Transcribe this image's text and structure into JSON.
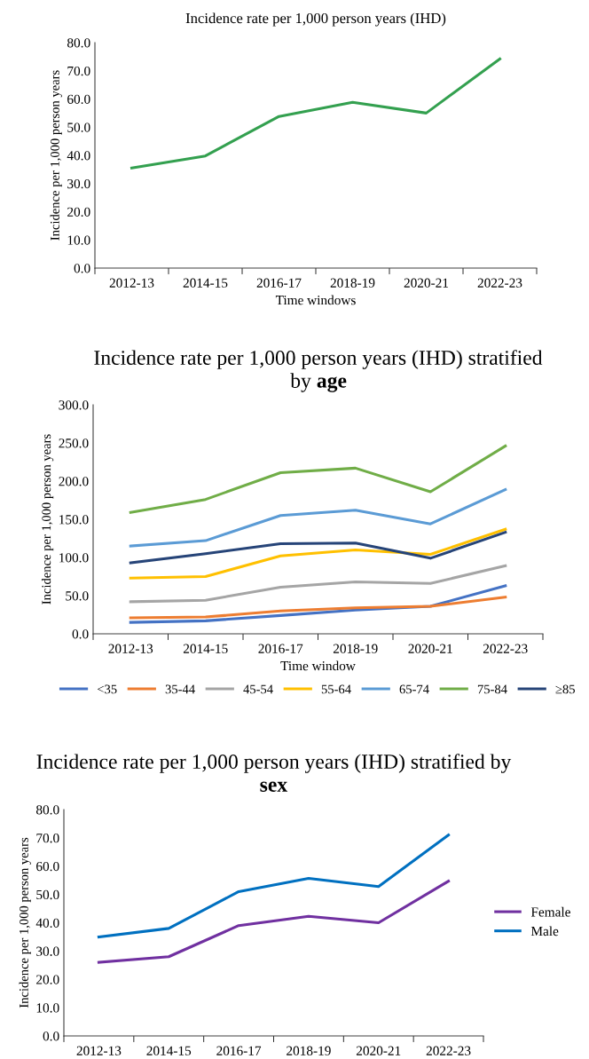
{
  "chart_data": [
    {
      "type": "line",
      "title": "Incidence rate per 1,000 person years (IHD)",
      "xlabel": "Time windows",
      "ylabel": "Incidence per 1,000 person years",
      "categories": [
        "2012-13",
        "2014-15",
        "2016-17",
        "2018-19",
        "2020-21",
        "2022-23"
      ],
      "series": [
        {
          "color": "#33a04f",
          "values": [
            35.5,
            39.8,
            53.8,
            58.8,
            55.0,
            74.2
          ]
        }
      ],
      "ylim": [
        0,
        80
      ],
      "yticks": [
        {
          "value": 0,
          "label": "0.0"
        },
        {
          "value": 10,
          "label": "10.0"
        },
        {
          "value": 20,
          "label": "20.0"
        },
        {
          "value": 30,
          "label": "30.0"
        },
        {
          "value": 40,
          "label": "40.0"
        },
        {
          "value": 50,
          "label": "50.0"
        },
        {
          "value": 60,
          "label": "60.0"
        },
        {
          "value": 70,
          "label": "70.0"
        },
        {
          "value": 80,
          "label": "80.0"
        }
      ],
      "legend": false,
      "grid": false
    },
    {
      "type": "line",
      "title": "Incidence rate per 1,000 person years (IHD) stratified by age",
      "xlabel": "Time window",
      "ylabel": "Incidence per 1,000 person years",
      "categories": [
        "2012-13",
        "2014-15",
        "2016-17",
        "2018-19",
        "2020-21",
        "2022-23"
      ],
      "series": [
        {
          "name": "<35",
          "color": "#4472c4",
          "values": [
            15,
            17,
            24,
            31,
            36,
            63
          ]
        },
        {
          "name": "35-44",
          "color": "#ed7d31",
          "values": [
            21,
            22,
            30,
            34,
            36,
            48
          ]
        },
        {
          "name": "45-54",
          "color": "#a5a5a5",
          "values": [
            42,
            44,
            61,
            68,
            66,
            89
          ]
        },
        {
          "name": "55-64",
          "color": "#ffc000",
          "values": [
            73,
            75,
            102,
            110,
            104,
            137
          ]
        },
        {
          "name": "65-74",
          "color": "#5b9bd5",
          "values": [
            115,
            122,
            155,
            162,
            144,
            189
          ]
        },
        {
          "name": "75-84",
          "color": "#70ad47",
          "values": [
            159,
            176,
            211,
            217,
            186,
            246
          ]
        },
        {
          "name": "≥85",
          "color": "#264478",
          "values": [
            93,
            105,
            118,
            119,
            99,
            133
          ]
        }
      ],
      "ylim": [
        0,
        300
      ],
      "yticks": [
        {
          "value": 0,
          "label": "0.0"
        },
        {
          "value": 50,
          "label": "50.0"
        },
        {
          "value": 100,
          "label": "100.0"
        },
        {
          "value": 150,
          "label": "150.0"
        },
        {
          "value": 200,
          "label": "200.0"
        },
        {
          "value": 250,
          "label": "250.0"
        },
        {
          "value": 300,
          "label": "300.0"
        }
      ],
      "legend": "bottom",
      "grid": false
    },
    {
      "type": "line",
      "title": "Incidence rate per 1,000 person years (IHD) stratified by sex",
      "ylabel": "Incidence per 1,000 person years",
      "categories": [
        "2012-13",
        "2014-15",
        "2016-17",
        "2018-19",
        "2020-21",
        "2022-23"
      ],
      "series": [
        {
          "name": "Female",
          "color": "#7030a0",
          "values": [
            26,
            28,
            39,
            42.3,
            40,
            54.7
          ]
        },
        {
          "name": "Male",
          "color": "#0070c0",
          "values": [
            35,
            38,
            51,
            55.7,
            52.8,
            71
          ]
        }
      ],
      "ylim": [
        0,
        80
      ],
      "yticks": [
        {
          "value": 0,
          "label": "0.0"
        },
        {
          "value": 10,
          "label": "10.0"
        },
        {
          "value": 20,
          "label": "20.0"
        },
        {
          "value": 30,
          "label": "30.0"
        },
        {
          "value": 40,
          "label": "40.0"
        },
        {
          "value": 50,
          "label": "50.0"
        },
        {
          "value": 60,
          "label": "60.0"
        },
        {
          "value": 70,
          "label": "70.0"
        },
        {
          "value": 80,
          "label": "80.0"
        }
      ],
      "legend": "right",
      "grid": false
    }
  ]
}
